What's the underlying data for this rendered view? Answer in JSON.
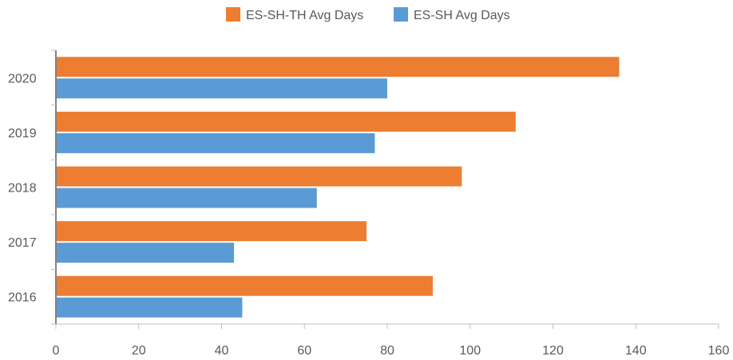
{
  "chart_data": {
    "type": "bar",
    "orientation": "horizontal",
    "categories": [
      "2016",
      "2017",
      "2018",
      "2019",
      "2020"
    ],
    "series": [
      {
        "name": "ES-SH-TH Avg Days",
        "color": "#ED7D31",
        "values": [
          91,
          75,
          98,
          111,
          136
        ]
      },
      {
        "name": "ES-SH Avg Days",
        "color": "#5B9BD5",
        "values": [
          45,
          43,
          63,
          77,
          80
        ]
      }
    ],
    "x_ticks": [
      "0",
      "20",
      "40",
      "60",
      "80",
      "100",
      "120",
      "140",
      "160"
    ],
    "xlim": [
      0,
      160
    ],
    "grid": false,
    "legend_position": "top"
  }
}
